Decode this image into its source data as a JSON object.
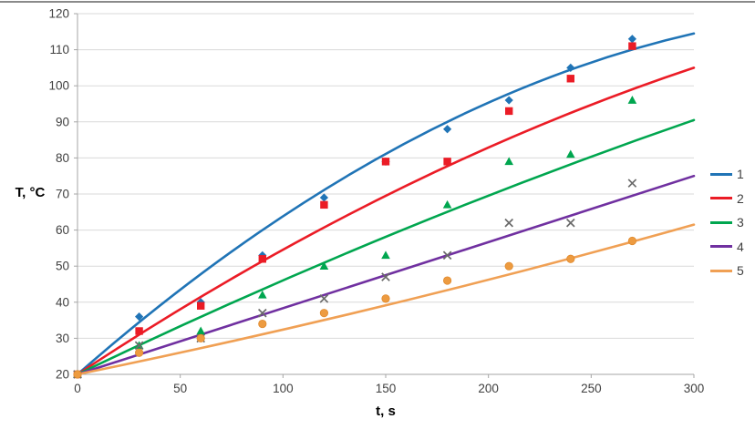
{
  "chart_data": {
    "type": "scatter",
    "title": "",
    "xlabel": "t, s",
    "ylabel": "T, °C",
    "xlim": [
      0,
      300
    ],
    "ylim": [
      20,
      120
    ],
    "x_ticks": [
      0,
      50,
      100,
      150,
      200,
      250,
      300
    ],
    "y_ticks": [
      20,
      30,
      40,
      50,
      60,
      70,
      80,
      90,
      100,
      110,
      120
    ],
    "grid": "horizontal",
    "legend_position": "right",
    "x": [
      0,
      30,
      60,
      90,
      120,
      150,
      180,
      210,
      240,
      270
    ],
    "series": [
      {
        "name": "1",
        "marker": "diamond",
        "color": "#2074B6",
        "marker_color": "#2074B6",
        "values": [
          20,
          36,
          40,
          53,
          69,
          79,
          88,
          96,
          105,
          113
        ],
        "trend": {
          "start": [
            0,
            20
          ],
          "control": [
            150,
            95
          ],
          "end": [
            300,
            114.5
          ]
        }
      },
      {
        "name": "2",
        "marker": "square",
        "color": "#EB1C26",
        "marker_color": "#EB1C26",
        "values": [
          20,
          32,
          39,
          52,
          67,
          79,
          79,
          93,
          102,
          111
        ],
        "trend": {
          "start": [
            0,
            20
          ],
          "control": [
            150,
            76.5
          ],
          "end": [
            300,
            105
          ]
        }
      },
      {
        "name": "3",
        "marker": "triangle",
        "color": "#00A64F",
        "marker_color": "#00A64F",
        "values": [
          20,
          28,
          32,
          42,
          50,
          53,
          67,
          79,
          81,
          96
        ],
        "trend": {
          "start": [
            0,
            20
          ],
          "control": [
            150,
            61
          ],
          "end": [
            300,
            90.5
          ]
        }
      },
      {
        "name": "4",
        "marker": "cross",
        "color": "#7030A0",
        "marker_color": "#6A6A6A",
        "values": [
          20,
          28,
          30,
          37,
          41,
          47,
          53,
          62,
          62,
          73
        ],
        "trend": {
          "start": [
            0,
            20
          ],
          "control": [
            150,
            47.5
          ],
          "end": [
            300,
            75
          ]
        }
      },
      {
        "name": "5",
        "marker": "circle",
        "color": "#F0A054",
        "marker_color": "#ED9B40",
        "values": [
          20,
          26,
          30,
          34,
          37,
          41,
          46,
          50,
          52,
          57
        ],
        "trend": {
          "start": [
            0,
            20
          ],
          "control": [
            150,
            37.5
          ],
          "end": [
            300,
            61.5
          ]
        }
      }
    ],
    "colors": {
      "gridline": "#D9D9D9",
      "axis_line": "#A6A6A6",
      "tick_text": "#404040",
      "background": "#FFFFFF"
    }
  }
}
